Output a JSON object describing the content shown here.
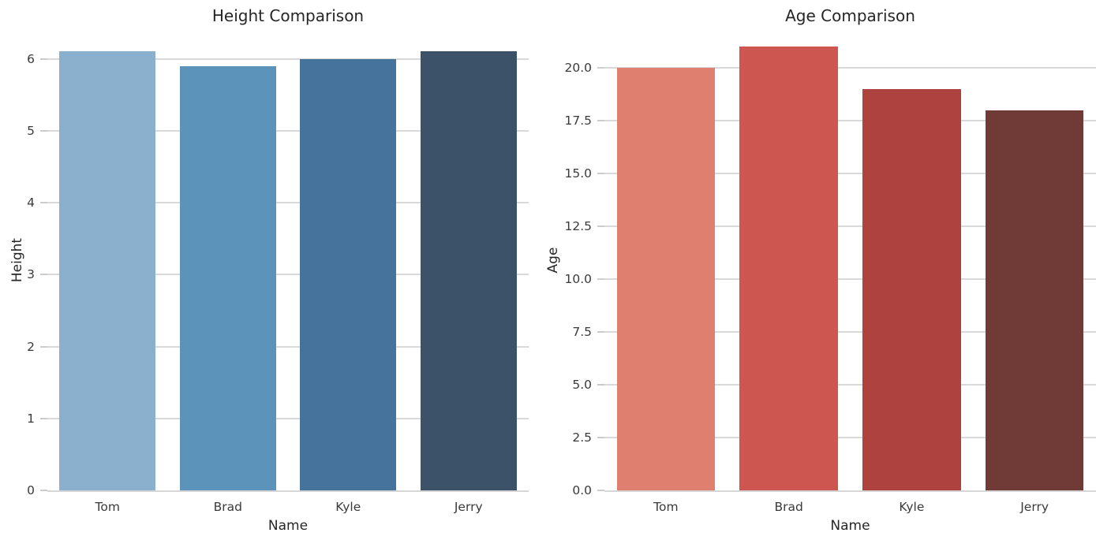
{
  "figure": {
    "background_color": "#ffffff",
    "text_color": "#262626",
    "grid_color": "#d9d9d9",
    "tick_color": "#cccccc"
  },
  "chart_data": [
    {
      "type": "bar",
      "title": "Height Comparison",
      "xlabel": "Name",
      "ylabel": "Height",
      "categories": [
        "Tom",
        "Brad",
        "Kyle",
        "Jerry"
      ],
      "values": [
        6.1,
        5.9,
        6.0,
        6.1
      ],
      "bar_colors": [
        "#8bb0ce",
        "#5c93ba",
        "#45739b",
        "#3b5268"
      ],
      "ytick_values": [
        0,
        1,
        2,
        3,
        4,
        5,
        6
      ],
      "ytick_labels": [
        "0",
        "1",
        "2",
        "3",
        "4",
        "5",
        "6"
      ],
      "ylim": [
        0,
        6.4
      ],
      "grid": "horizontal",
      "legend": "none"
    },
    {
      "type": "bar",
      "title": "Age Comparison",
      "xlabel": "Name",
      "ylabel": "Age",
      "categories": [
        "Tom",
        "Brad",
        "Kyle",
        "Jerry"
      ],
      "values": [
        20,
        21,
        19,
        18
      ],
      "bar_colors": [
        "#df7f6f",
        "#cd5750",
        "#ad423e",
        "#703a37"
      ],
      "ytick_values": [
        0,
        2.5,
        5,
        7.5,
        10,
        12.5,
        15,
        17.5,
        20
      ],
      "ytick_labels": [
        "0.0",
        "2.5",
        "5.0",
        "7.5",
        "10.0",
        "12.5",
        "15.0",
        "17.5",
        "20.0"
      ],
      "ylim": [
        0,
        21.8
      ],
      "grid": "horizontal",
      "legend": "none"
    }
  ]
}
